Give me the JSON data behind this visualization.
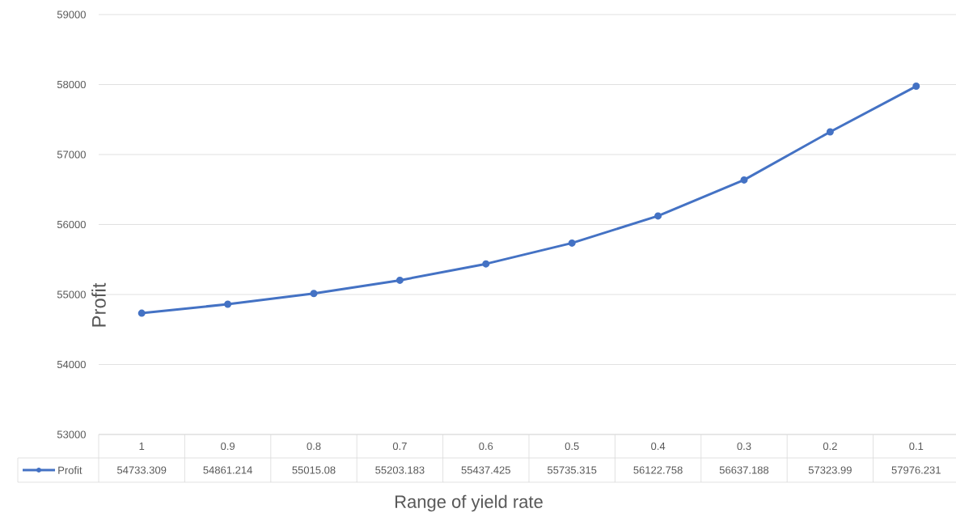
{
  "chart_data": {
    "type": "line",
    "xlabel": "Range of yield rate",
    "ylabel": "Profit",
    "categories": [
      "1",
      "0.9",
      "0.8",
      "0.7",
      "0.6",
      "0.5",
      "0.4",
      "0.3",
      "0.2",
      "0.1"
    ],
    "series": [
      {
        "name": "Profit",
        "color": "#4472c4",
        "values": [
          54733.309,
          54861.214,
          55015.08,
          55203.183,
          55437.425,
          55735.315,
          56122.758,
          56637.188,
          57323.99,
          57976.231
        ]
      }
    ],
    "ylim": [
      53000,
      59000
    ],
    "yticks": [
      53000,
      54000,
      55000,
      56000,
      57000,
      58000,
      59000
    ],
    "grid": "y",
    "legend": "bottom",
    "marker": "circle",
    "line_style": "solid",
    "data_labels": true
  }
}
